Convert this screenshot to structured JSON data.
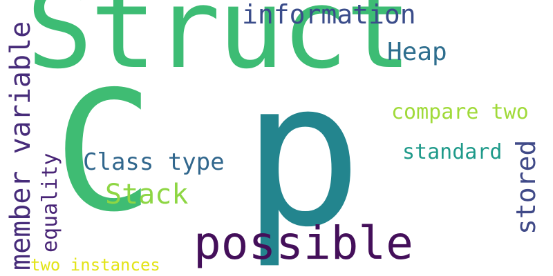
{
  "wordcloud": {
    "words": [
      {
        "text": "Struct",
        "color": "#3dbc74"
      },
      {
        "text": "p",
        "color": "#23858e"
      },
      {
        "text": "C",
        "color": "#3fbc73"
      },
      {
        "text": "possible",
        "color": "#440f5a"
      },
      {
        "text": "information",
        "color": "#3a4c8a"
      },
      {
        "text": "Heap",
        "color": "#2e6e8e"
      },
      {
        "text": "compare two",
        "color": "#a0da39"
      },
      {
        "text": "standard",
        "color": "#1f9a8a"
      },
      {
        "text": "Class type",
        "color": "#31678d"
      },
      {
        "text": "Stack",
        "color": "#8ed644"
      },
      {
        "text": "two instances",
        "color": "#e2e418"
      },
      {
        "text": "member variable",
        "color": "#472c7a"
      },
      {
        "text": "equality",
        "color": "#482476"
      },
      {
        "text": "stored",
        "color": "#404a88"
      }
    ]
  }
}
